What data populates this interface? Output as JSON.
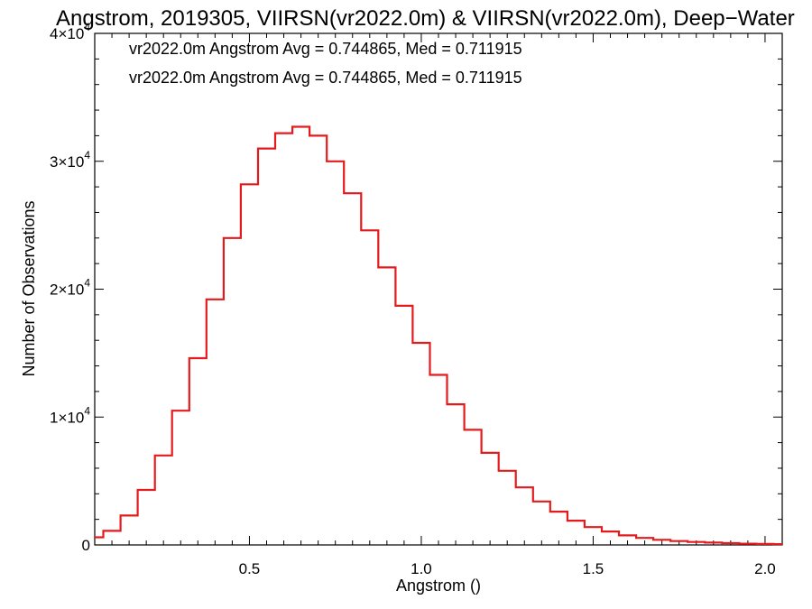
{
  "chart_data": {
    "type": "line",
    "title": "Angstrom, 2019305, VIIRSN(vr2022.0m) & VIIRSN(vr2022.0m), Deep−Water",
    "xlabel": "Angstrom ()",
    "ylabel": "Number of Observations",
    "xlim": [
      0.05,
      2.05
    ],
    "ylim": [
      0,
      40000
    ],
    "x_ticks": [
      "0.5",
      "1.0",
      "1.5",
      "2.0"
    ],
    "x_tick_values": [
      0.5,
      1.0,
      1.5,
      2.0
    ],
    "y_ticks": [
      {
        "value": 0,
        "mantissa": "0",
        "exponent": ""
      },
      {
        "value": 10000,
        "mantissa": "1×10",
        "exponent": "4"
      },
      {
        "value": 20000,
        "mantissa": "2×10",
        "exponent": "4"
      },
      {
        "value": 30000,
        "mantissa": "3×10",
        "exponent": "4"
      },
      {
        "value": 40000,
        "mantissa": "4×10",
        "exponent": "4"
      }
    ],
    "annotations": [
      {
        "text": "vr2022.0m Angstrom Avg = 0.744865, Med = 0.711915",
        "color": "#000000"
      },
      {
        "text": "vr2022.0m Angstrom Avg = 0.744865, Med = 0.711915",
        "color": "#e41a1c"
      }
    ],
    "series": [
      {
        "color": "#e41a1c",
        "x": [
          0.05,
          0.1,
          0.15,
          0.2,
          0.25,
          0.3,
          0.35,
          0.4,
          0.45,
          0.5,
          0.55,
          0.6,
          0.65,
          0.7,
          0.75,
          0.8,
          0.85,
          0.9,
          0.95,
          1.0,
          1.05,
          1.1,
          1.15,
          1.2,
          1.25,
          1.3,
          1.35,
          1.4,
          1.45,
          1.5,
          1.55,
          1.6,
          1.65,
          1.7,
          1.75,
          1.8,
          1.85,
          1.9,
          1.95,
          2.0,
          2.05
        ],
        "y": [
          600,
          1100,
          2300,
          4300,
          7000,
          10500,
          14600,
          19200,
          24000,
          28200,
          31000,
          32200,
          32700,
          32000,
          30000,
          27500,
          24600,
          21700,
          18700,
          15800,
          13300,
          11000,
          9000,
          7200,
          5800,
          4500,
          3400,
          2600,
          1900,
          1400,
          1050,
          750,
          550,
          400,
          300,
          230,
          180,
          140,
          100,
          80,
          60
        ]
      }
    ]
  }
}
